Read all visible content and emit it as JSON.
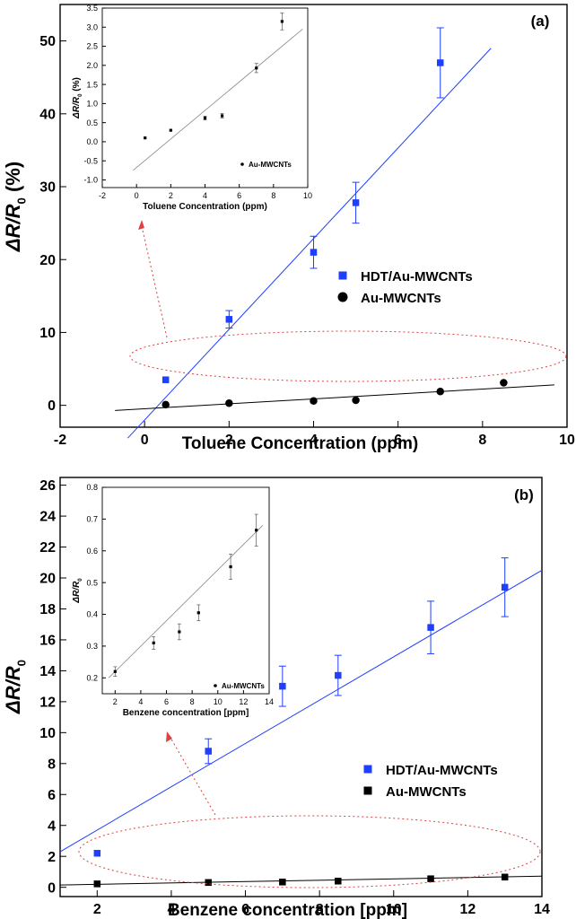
{
  "chart_data": [
    {
      "type": "scatter",
      "panel_label": "(a)",
      "xlabel": "Toluene Concentration (ppm)",
      "ylabel_main": "ΔR/R",
      "ylabel_sub": "0",
      "ylabel_unit": "(%)",
      "xlim": [
        -2,
        10
      ],
      "ylim": [
        -3,
        55
      ],
      "xticks": [
        "-2",
        "0",
        "2",
        "4",
        "6",
        "8",
        "10"
      ],
      "yticks": [
        "0",
        "10",
        "20",
        "30",
        "40",
        "50"
      ],
      "series": [
        {
          "name": "HDT/Au-MWCNTs",
          "color": "#1f3fff",
          "marker": "square",
          "x": [
            0.5,
            2,
            4,
            5,
            7
          ],
          "y": [
            3.5,
            11.8,
            21,
            27.8,
            47
          ],
          "err": [
            0,
            1.2,
            2.2,
            2.8,
            4.8
          ],
          "fit": {
            "x": [
              -0.4,
              8.2
            ],
            "y": [
              -4.5,
              49
            ]
          }
        },
        {
          "name": "Au-MWCNTs",
          "color": "#000000",
          "marker": "circle",
          "x": [
            0.5,
            2,
            4,
            5,
            7,
            8.5
          ],
          "y": [
            0.1,
            0.3,
            0.6,
            0.7,
            1.9,
            3.1
          ],
          "err": [
            0,
            0,
            0,
            0,
            0,
            0
          ],
          "fit": {
            "x": [
              -0.7,
              9.7
            ],
            "y": [
              -0.7,
              2.8
            ]
          }
        }
      ],
      "inset": {
        "xlabel": "Toluene Concentration  (ppm)",
        "ylabel_main": "ΔR/R",
        "ylabel_sub": "0",
        "ylabel_unit": "(%)",
        "xlim": [
          -2,
          10
        ],
        "ylim": [
          -1.2,
          3.5
        ],
        "xticks": [
          "-2",
          "0",
          "2",
          "4",
          "6",
          "8",
          "10"
        ],
        "yticks": [
          "-1.0",
          "-0.5",
          "0.0",
          "0.5",
          "1.0",
          "1.5",
          "2.0",
          "2.5",
          "3.0",
          "3.5"
        ],
        "legend": "Au-MWCNTs",
        "x": [
          0.5,
          2,
          4,
          5,
          7,
          8.5
        ],
        "y": [
          0.1,
          0.3,
          0.62,
          0.68,
          1.93,
          3.15
        ],
        "err": [
          0,
          0,
          0.05,
          0.06,
          0.12,
          0.22
        ],
        "fit": {
          "x": [
            -0.2,
            9.7
          ],
          "y": [
            -0.75,
            2.95
          ]
        }
      }
    },
    {
      "type": "scatter",
      "panel_label": "(b)",
      "xlabel": "Benzene concentration [ppm]",
      "ylabel_main": "ΔR/R",
      "ylabel_sub": "0",
      "xlim": [
        1,
        14
      ],
      "ylim": [
        -0.6,
        26.5
      ],
      "xticks": [
        "2",
        "4",
        "6",
        "8",
        "10",
        "12",
        "14"
      ],
      "yticks": [
        "0",
        "2",
        "4",
        "6",
        "8",
        "10",
        "12",
        "14",
        "16",
        "18",
        "20",
        "22",
        "24",
        "26"
      ],
      "series": [
        {
          "name": "HDT/Au-MWCNTs",
          "color": "#1f3fff",
          "marker": "square",
          "x": [
            2,
            5,
            7,
            8.5,
            11,
            13
          ],
          "y": [
            2.2,
            8.8,
            13,
            13.7,
            16.8,
            19.4
          ],
          "err": [
            0,
            0.8,
            1.3,
            1.3,
            1.7,
            1.9
          ],
          "fit": {
            "x": [
              1,
              14
            ],
            "y": [
              2.3,
              20.5
            ]
          }
        },
        {
          "name": "Au-MWCNTs",
          "color": "#000000",
          "marker": "square",
          "x": [
            2,
            5,
            7,
            8.5,
            11,
            13
          ],
          "y": [
            0.22,
            0.31,
            0.34,
            0.4,
            0.55,
            0.66
          ],
          "err": [
            0,
            0,
            0,
            0,
            0,
            0
          ],
          "fit": {
            "x": [
              1,
              14
            ],
            "y": [
              0.15,
              0.72
            ]
          }
        }
      ],
      "inset": {
        "xlabel": "Benzene concentration [ppm]",
        "ylabel_main": "ΔR/R",
        "ylabel_sub": "0",
        "xlim": [
          1,
          14
        ],
        "ylim": [
          0.15,
          0.8
        ],
        "xticks": [
          "2",
          "4",
          "6",
          "8",
          "10",
          "12",
          "14"
        ],
        "yticks": [
          "0.2",
          "0.3",
          "0.4",
          "0.5",
          "0.6",
          "0.7",
          "0.8"
        ],
        "legend": "Au-MWCNTs",
        "x": [
          2,
          5,
          7,
          8.5,
          11,
          13
        ],
        "y": [
          0.22,
          0.31,
          0.345,
          0.405,
          0.55,
          0.665
        ],
        "err": [
          0.015,
          0.02,
          0.025,
          0.025,
          0.04,
          0.05
        ],
        "fit": {
          "x": [
            1.5,
            13.5
          ],
          "y": [
            0.2,
            0.68
          ]
        }
      }
    }
  ]
}
